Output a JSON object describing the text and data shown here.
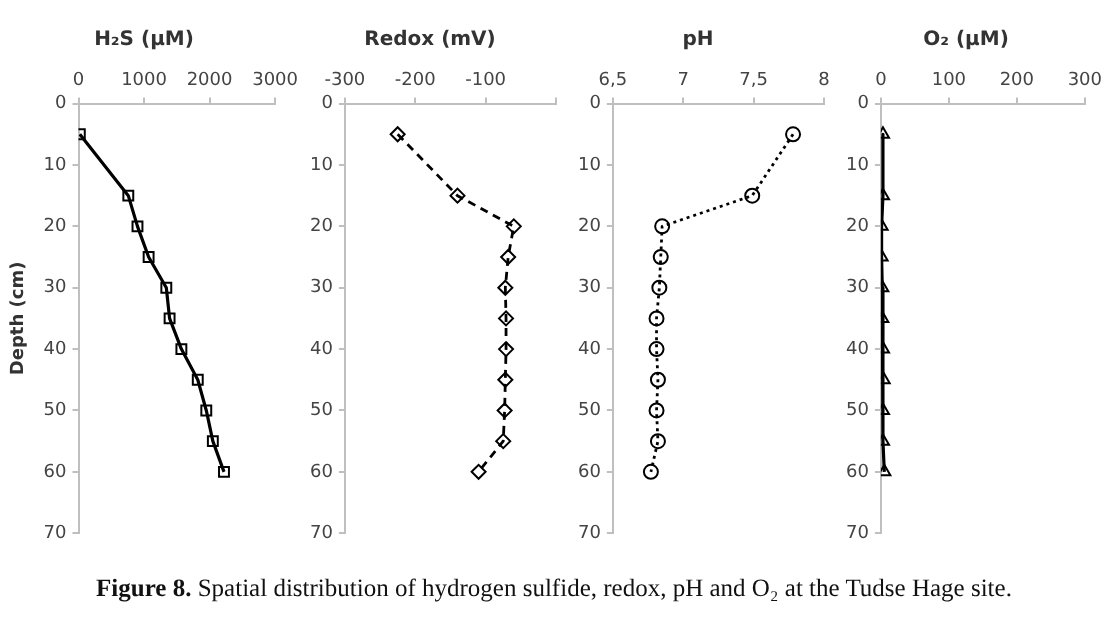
{
  "chart_data": [
    {
      "type": "line",
      "title": "H₂S (μM)",
      "ylabel": "Depth (cm)",
      "xlim": [
        0,
        3000
      ],
      "xticks": [
        0,
        1000,
        2000,
        3000
      ],
      "ylim": [
        70,
        0
      ],
      "yticks": [
        0,
        10,
        20,
        30,
        40,
        50,
        60,
        70
      ],
      "marker": "square",
      "line_style": "solid",
      "grid": false,
      "legend": false,
      "series": [
        {
          "color": "#000000",
          "x": [
            20,
            760,
            900,
            1070,
            1340,
            1390,
            1570,
            1820,
            1950,
            2050,
            2220
          ],
          "values": [
            5,
            15,
            20,
            25,
            30,
            35,
            40,
            45,
            50,
            55,
            60
          ]
        }
      ],
      "annotations": [
        "Figure 8. Spatial distribution of hydrogen sulfide, redox, pH and O₂ at the Tudse Hage site."
      ]
    },
    {
      "type": "line",
      "title": "Redox (mV)",
      "xlim": [
        -300,
        0
      ],
      "xticks": [
        -300,
        -200,
        -100,
        {
          "value": 0,
          "label": null
        }
      ],
      "ylim": [
        70,
        0
      ],
      "yticks": [
        0,
        10,
        20,
        30,
        40,
        50,
        60,
        70
      ],
      "marker": "diamond",
      "line_style": "dashed",
      "grid": false,
      "legend": false,
      "series": [
        {
          "color": "#000000",
          "x": [
            -225,
            -140,
            -60,
            -68,
            -72,
            -71,
            -71,
            -72,
            -73,
            -75,
            -110
          ],
          "values": [
            5,
            15,
            20,
            25,
            30,
            35,
            40,
            45,
            50,
            55,
            60
          ]
        }
      ]
    },
    {
      "type": "line",
      "title": "pH",
      "xlim": [
        6.5,
        8
      ],
      "xticks": [
        {
          "value": 6.5,
          "label": "6,5"
        },
        7,
        {
          "value": 7.5,
          "label": "7,5"
        },
        8
      ],
      "ylim": [
        70,
        0
      ],
      "yticks": [
        0,
        10,
        20,
        30,
        40,
        50,
        60,
        70
      ],
      "marker": "circle",
      "line_style": "dotted",
      "grid": false,
      "legend": false,
      "series": [
        {
          "color": "#000000",
          "x": [
            7.78,
            7.49,
            6.85,
            6.84,
            6.83,
            6.81,
            6.81,
            6.82,
            6.81,
            6.82,
            6.77
          ],
          "values": [
            5,
            15,
            20,
            25,
            30,
            35,
            40,
            45,
            50,
            55,
            60
          ]
        }
      ]
    },
    {
      "type": "line",
      "title": "O₂ (μM)",
      "xlim": [
        0,
        300
      ],
      "xticks": [
        0,
        100,
        200,
        300
      ],
      "ylim": [
        70,
        0
      ],
      "yticks": [
        0,
        10,
        20,
        30,
        40,
        50,
        60,
        70
      ],
      "marker": "triangle",
      "line_style": "solid",
      "grid": false,
      "legend": false,
      "series": [
        {
          "color": "#000000",
          "x": [
            3,
            3,
            1,
            1,
            2,
            2,
            3,
            4,
            3,
            3,
            5
          ],
          "values": [
            5,
            15,
            20,
            25,
            30,
            35,
            40,
            45,
            50,
            55,
            60
          ]
        }
      ]
    }
  ]
}
